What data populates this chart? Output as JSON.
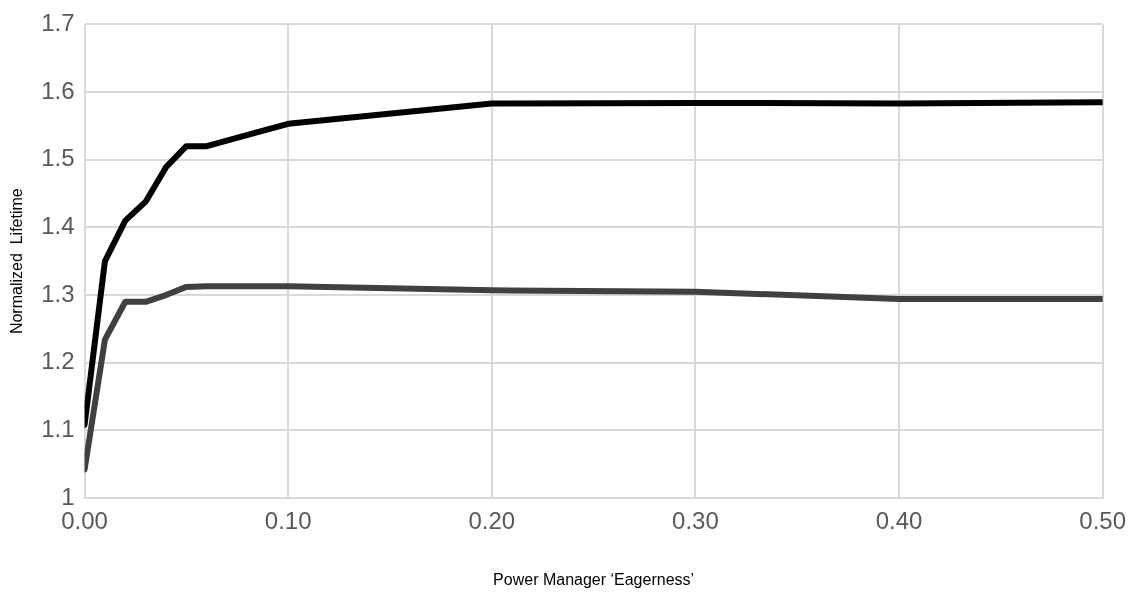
{
  "chart_data": {
    "type": "line",
    "xlabel": "Power Manager ‘Eagerness’",
    "ylabel": "Normalized  Lifetime",
    "x": [
      0,
      0.01,
      0.02,
      0.03,
      0.04,
      0.05,
      0.06,
      0.1,
      0.2,
      0.3,
      0.4,
      0.5
    ],
    "series": [
      {
        "color": "#000000",
        "values": [
          1.108,
          1.35,
          1.41,
          1.438,
          1.489,
          1.52,
          1.52,
          1.553,
          1.583,
          1.584,
          1.583,
          1.585
        ]
      },
      {
        "color": "#404040",
        "values": [
          1.042,
          1.234,
          1.29,
          1.29,
          1.3,
          1.312,
          1.313,
          1.313,
          1.307,
          1.305,
          1.294,
          1.294
        ]
      }
    ],
    "xlim": [
      0,
      0.5
    ],
    "xticks": [
      {
        "value": 0,
        "label": "0.00"
      },
      {
        "value": 0.1,
        "label": "0.10"
      },
      {
        "value": 0.2,
        "label": "0.20"
      },
      {
        "value": 0.3,
        "label": "0.30"
      },
      {
        "value": 0.4,
        "label": "0.40"
      },
      {
        "value": 0.5,
        "label": "0.50"
      }
    ],
    "ylim": [
      1,
      1.7
    ],
    "yticks": [
      1,
      1.1,
      1.2,
      1.3,
      1.4,
      1.5,
      1.6,
      1.7
    ],
    "grid": true,
    "legend": false,
    "marker": "none",
    "line_style": "solid"
  }
}
